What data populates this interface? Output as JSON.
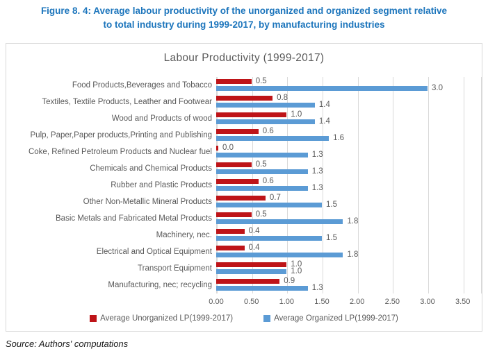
{
  "figure_title": {
    "line1": "Figure 8. 4: Average labour productivity of the unorganized and organized segment relative",
    "line2": "to total industry during 1999-2017, by manufacturing industries"
  },
  "source": "Source: Authors' computations",
  "colors": {
    "figure_title_blue": "#1C75BC",
    "unorganized_red": "#BE1418",
    "organized_blue": "#5B9BD5",
    "gridline_gray": "#D9D9D9",
    "text_gray": "#595959"
  },
  "chart_data": {
    "type": "bar",
    "orientation": "horizontal",
    "title": "Labour Productivity (1999-2017)",
    "categories": [
      "Food Products,Beverages and Tobacco",
      "Textiles, Textile Products, Leather and Footwear",
      "Wood and Products of wood",
      "Pulp, Paper,Paper products,Printing and Publishing",
      "Coke, Refined Petroleum Products and Nuclear fuel",
      "Chemicals and  Chemical Products",
      "Rubber and Plastic Products",
      "Other Non-Metallic Mineral Products",
      "Basic Metals and Fabricated Metal Products",
      "Machinery, nec.",
      "Electrical and Optical Equipment",
      "Transport Equipment",
      "Manufacturing, nec; recycling"
    ],
    "series": [
      {
        "name": "Average Unorganized LP(1999-2017)",
        "color": "#BE1418",
        "values": [
          0.5,
          0.8,
          1.0,
          0.6,
          0.0,
          0.5,
          0.6,
          0.7,
          0.5,
          0.4,
          0.4,
          1.0,
          0.9
        ]
      },
      {
        "name": "Average Organized LP(1999-2017)",
        "color": "#5B9BD5",
        "values": [
          3.0,
          1.4,
          1.4,
          1.6,
          1.3,
          1.3,
          1.3,
          1.5,
          1.8,
          1.5,
          1.8,
          1.0,
          1.3
        ]
      }
    ],
    "xlabel": "",
    "ylabel": "",
    "xlim": [
      0,
      3.75
    ],
    "x_tick_values": [
      0,
      0.5,
      1.0,
      1.5,
      2.0,
      2.5,
      3.0,
      3.5
    ],
    "x_tick_labels": [
      "0.00",
      "0.50",
      "1.00",
      "1.50",
      "2.00",
      "2.50",
      "3.00",
      "3.50"
    ],
    "grid": "vertical",
    "legend_position": "bottom",
    "data_labels": "one-decimal"
  }
}
